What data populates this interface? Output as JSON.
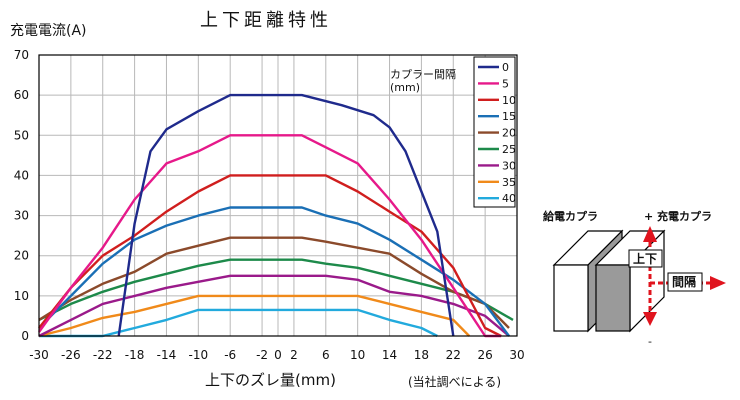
{
  "chart_data": {
    "type": "line",
    "title": "上下距離特性",
    "ylabel": "充電電流(A)",
    "xlabel": "上下のズレ量(mm)",
    "note": "(当社調べによる)",
    "xlim": [
      -30,
      30
    ],
    "ylim": [
      0,
      70
    ],
    "xticks": [
      -30,
      -26,
      -22,
      -18,
      -14,
      -10,
      -6,
      -2,
      0,
      2,
      6,
      10,
      14,
      18,
      22,
      26,
      30
    ],
    "xtick_labels": [
      "-30",
      "-26",
      "-22",
      "-18",
      "-14",
      "-10",
      "-6",
      "-2",
      "0",
      "2",
      "6",
      "10",
      "14",
      "18",
      "22",
      "26",
      "30"
    ],
    "yticks": [
      0,
      10,
      20,
      30,
      40,
      50,
      60,
      70
    ],
    "ytick_labels": [
      "0",
      "10",
      "20",
      "30",
      "40",
      "50",
      "60",
      "70"
    ],
    "grid": true,
    "legend_title": "カプラー間隔\n(mm)",
    "legend_position": "top-right",
    "series": [
      {
        "name": "0",
        "color": "#1f2a8c",
        "x": [
          -20,
          -18,
          -16,
          -14,
          -10,
          -6,
          3,
          8,
          12,
          14,
          16,
          18,
          20,
          22
        ],
        "y": [
          0,
          28,
          46,
          51.5,
          56,
          60,
          60,
          57.5,
          55,
          52,
          46,
          36,
          26,
          0
        ]
      },
      {
        "name": "5",
        "color": "#e6198a",
        "x": [
          -30,
          -26,
          -22,
          -18,
          -14,
          -10,
          -6,
          3,
          6,
          10,
          14,
          18,
          22,
          26,
          28
        ],
        "y": [
          1,
          12,
          22,
          34,
          43,
          46,
          50,
          50,
          47,
          43,
          34,
          24,
          12,
          0,
          0
        ]
      },
      {
        "name": "10",
        "color": "#d01e1e",
        "x": [
          -30,
          -26,
          -22,
          -18,
          -14,
          -10,
          -6,
          3,
          6,
          10,
          14,
          18,
          22,
          26,
          28
        ],
        "y": [
          2,
          12,
          20,
          25,
          31,
          36,
          40,
          40,
          40,
          36,
          31,
          26,
          17,
          2,
          0
        ]
      },
      {
        "name": "15",
        "color": "#1a6fb5",
        "x": [
          -30,
          -26,
          -22,
          -18,
          -14,
          -10,
          -6,
          3,
          6,
          10,
          14,
          18,
          22,
          26,
          29
        ],
        "y": [
          2,
          10,
          18,
          24,
          27.5,
          30,
          32,
          32,
          30,
          28,
          24,
          19,
          14,
          8,
          0
        ]
      },
      {
        "name": "20",
        "color": "#8b4a2b",
        "x": [
          -30,
          -26,
          -22,
          -18,
          -14,
          -10,
          -6,
          3,
          6,
          10,
          14,
          18,
          22,
          26,
          29
        ],
        "y": [
          4,
          9,
          13,
          16,
          20.5,
          22.5,
          24.5,
          24.5,
          23.5,
          22,
          20.5,
          15.5,
          11,
          8,
          2
        ]
      },
      {
        "name": "25",
        "color": "#1d8a4a",
        "x": [
          -30,
          -26,
          -22,
          -18,
          -14,
          -10,
          -6,
          3,
          6,
          10,
          14,
          18,
          22,
          26,
          29.5
        ],
        "y": [
          4,
          8,
          11,
          13.5,
          15.5,
          17.5,
          19,
          19,
          18,
          17,
          15,
          13,
          11,
          8,
          4
        ]
      },
      {
        "name": "30",
        "color": "#9a1a8a",
        "x": [
          -30,
          -26,
          -22,
          -18,
          -14,
          -10,
          -6,
          3,
          6,
          10,
          14,
          18,
          22,
          26,
          29
        ],
        "y": [
          0,
          4,
          8,
          10,
          12,
          13.5,
          15,
          15,
          15,
          14,
          11,
          10,
          8,
          5,
          0
        ]
      },
      {
        "name": "35",
        "color": "#f08a1a",
        "x": [
          -30,
          -26,
          -22,
          -18,
          -14,
          -10,
          -6,
          3,
          6,
          10,
          14,
          18,
          22,
          24
        ],
        "y": [
          0,
          2,
          4.5,
          6,
          8,
          10,
          10,
          10,
          10,
          10,
          8,
          6,
          4,
          0
        ]
      },
      {
        "name": "40",
        "color": "#22aadd",
        "x": [
          -30,
          -22,
          -18,
          -14,
          -10,
          -6,
          3,
          6,
          10,
          14,
          18,
          20
        ],
        "y": [
          0,
          0,
          2,
          4,
          6.5,
          6.5,
          6.5,
          6.5,
          6.5,
          4,
          2,
          0
        ]
      }
    ]
  },
  "diagram": {
    "left_label": "給電カプラ",
    "right_label": "+ 充電カプラ",
    "minus_label": "-",
    "vertical_label": "上下",
    "gap_label": "間隔",
    "arrow_color": "#e0141e"
  }
}
